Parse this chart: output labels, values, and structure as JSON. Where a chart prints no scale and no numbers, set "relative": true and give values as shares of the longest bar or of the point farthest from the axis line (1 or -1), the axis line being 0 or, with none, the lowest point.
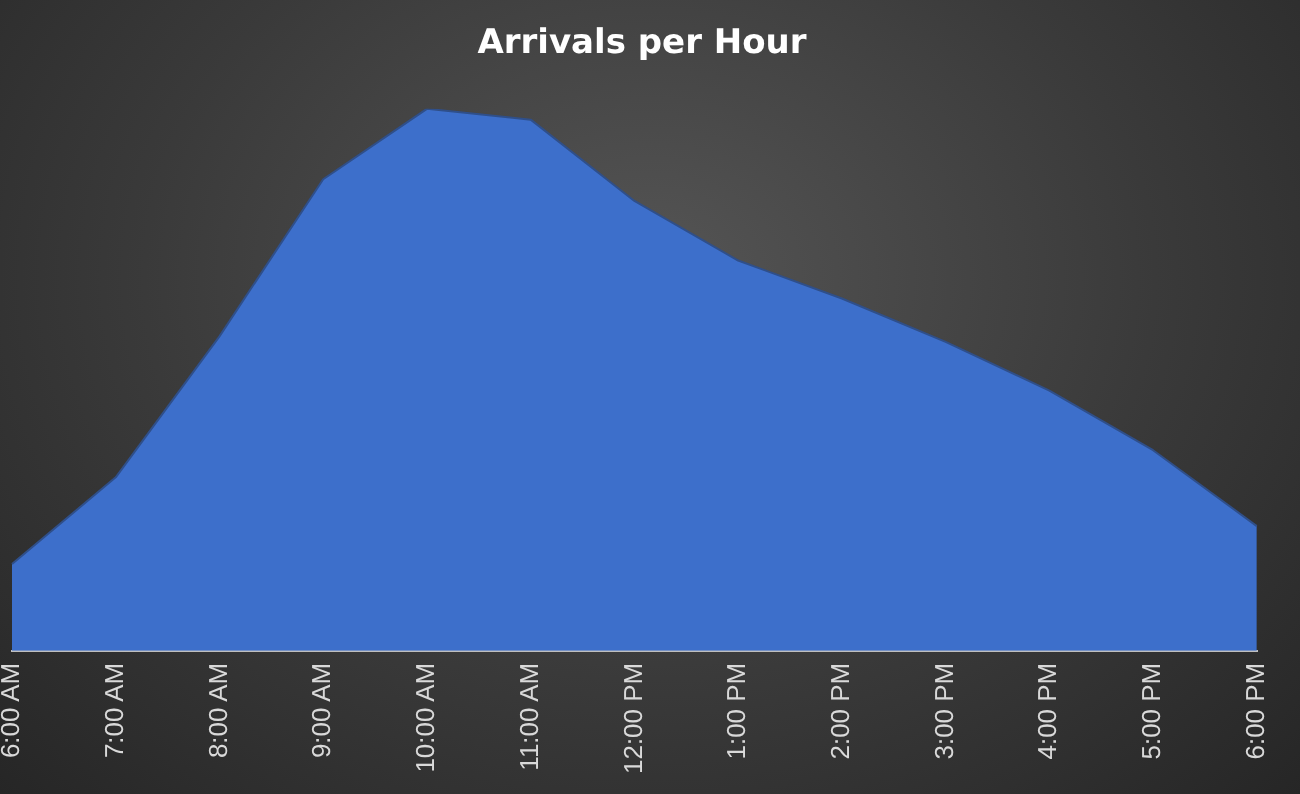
{
  "chart_data": {
    "type": "area",
    "title": "Arrivals per Hour",
    "relative": true,
    "categories": [
      "6:00 AM",
      "7:00 AM",
      "8:00 AM",
      "9:00 AM",
      "10:00 AM",
      "11:00 AM",
      "12:00 PM",
      "1:00 PM",
      "2:00 PM",
      "3:00 PM",
      "4:00 PM",
      "5:00 PM",
      "6:00 PM"
    ],
    "series": [
      {
        "color": "#3d6fcb",
        "values": [
          0.16,
          0.32,
          0.58,
          0.87,
          1,
          0.98,
          0.83,
          0.72,
          0.65,
          0.57,
          0.48,
          0.37,
          0.23
        ]
      }
    ],
    "grid": false,
    "legend": false
  }
}
